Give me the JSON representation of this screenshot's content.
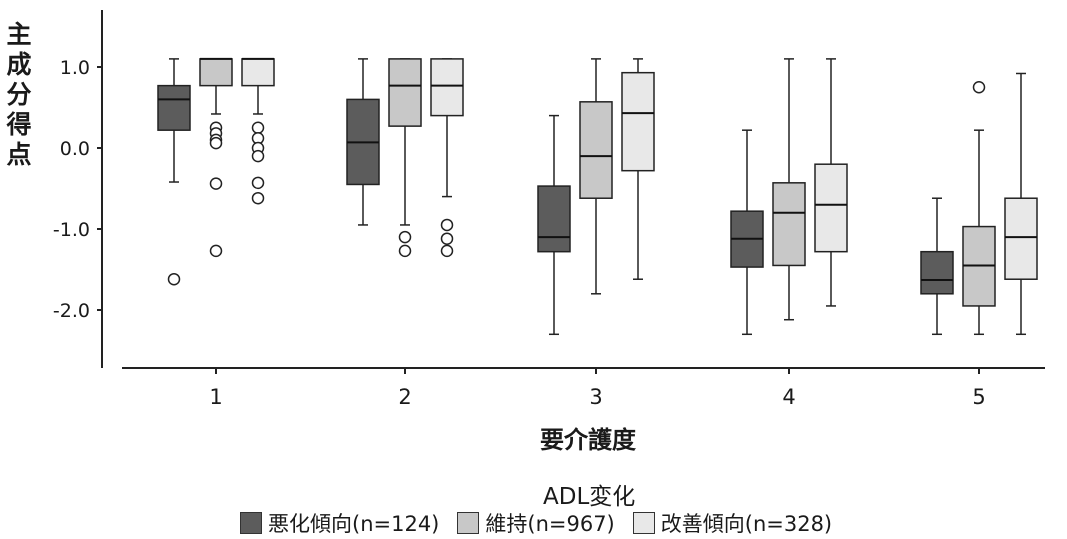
{
  "chart_data": {
    "type": "box",
    "title": "",
    "xlabel": "要介護度",
    "ylabel": "主成分得点",
    "ylim": [
      -2.6,
      1.6
    ],
    "yticks": [
      1.0,
      0.0,
      -1.0,
      -2.0
    ],
    "yticklabels": [
      "1.0",
      "0.0",
      "-1.0",
      "-2.0"
    ],
    "categories": [
      "1",
      "2",
      "3",
      "4",
      "5"
    ],
    "legend_title": "ADL変化",
    "legend_position": "bottom",
    "series": [
      {
        "name": "悪化傾向(n=124)",
        "color": "#5c5c5c",
        "boxes": [
          {
            "whisker_low": -0.42,
            "q1": 0.22,
            "median": 0.6,
            "q3": 0.77,
            "whisker_high": 1.1,
            "outliers": [
              -1.62
            ]
          },
          {
            "whisker_low": -0.95,
            "q1": -0.45,
            "median": 0.07,
            "q3": 0.6,
            "whisker_high": 1.1,
            "outliers": []
          },
          {
            "whisker_low": -2.3,
            "q1": -1.28,
            "median": -1.1,
            "q3": -0.47,
            "whisker_high": 0.4,
            "outliers": []
          },
          {
            "whisker_low": -2.3,
            "q1": -1.47,
            "median": -1.12,
            "q3": -0.78,
            "whisker_high": 0.22,
            "outliers": []
          },
          {
            "whisker_low": -2.3,
            "q1": -1.8,
            "median": -1.63,
            "q3": -1.28,
            "whisker_high": -0.62,
            "outliers": []
          }
        ]
      },
      {
        "name": "維持(n=967)",
        "color": "#c8c8c8",
        "boxes": [
          {
            "whisker_low": 0.42,
            "q1": 0.77,
            "median": 1.1,
            "q3": 1.1,
            "whisker_high": 1.1,
            "outliers": [
              0.25,
              0.18,
              0.1,
              0.06,
              -0.44,
              -1.27
            ]
          },
          {
            "whisker_low": -0.95,
            "q1": 0.27,
            "median": 0.77,
            "q3": 1.1,
            "whisker_high": 1.1,
            "outliers": [
              -1.1,
              -1.27
            ]
          },
          {
            "whisker_low": -1.8,
            "q1": -0.62,
            "median": -0.1,
            "q3": 0.57,
            "whisker_high": 1.1,
            "outliers": []
          },
          {
            "whisker_low": -2.12,
            "q1": -1.45,
            "median": -0.8,
            "q3": -0.43,
            "whisker_high": 1.1,
            "outliers": []
          },
          {
            "whisker_low": -2.3,
            "q1": -1.95,
            "median": -1.45,
            "q3": -0.97,
            "whisker_high": 0.22,
            "outliers": [
              0.75
            ]
          }
        ]
      },
      {
        "name": "改善傾向(n=328)",
        "color": "#e8e8e8",
        "boxes": [
          {
            "whisker_low": 0.42,
            "q1": 0.77,
            "median": 1.1,
            "q3": 1.1,
            "whisker_high": 1.1,
            "outliers": [
              0.25,
              0.12,
              0.0,
              -0.1,
              -0.43,
              -0.62
            ]
          },
          {
            "whisker_low": -0.6,
            "q1": 0.4,
            "median": 0.77,
            "q3": 1.1,
            "whisker_high": 1.1,
            "outliers": [
              -0.95,
              -1.12,
              -1.27
            ]
          },
          {
            "whisker_low": -1.62,
            "q1": -0.28,
            "median": 0.43,
            "q3": 0.93,
            "whisker_high": 1.1,
            "outliers": []
          },
          {
            "whisker_low": -1.95,
            "q1": -1.28,
            "median": -0.7,
            "q3": -0.2,
            "whisker_high": 1.1,
            "outliers": []
          },
          {
            "whisker_low": -2.3,
            "q1": -1.62,
            "median": -1.1,
            "q3": -0.62,
            "whisker_high": 0.92,
            "outliers": []
          }
        ]
      }
    ]
  }
}
